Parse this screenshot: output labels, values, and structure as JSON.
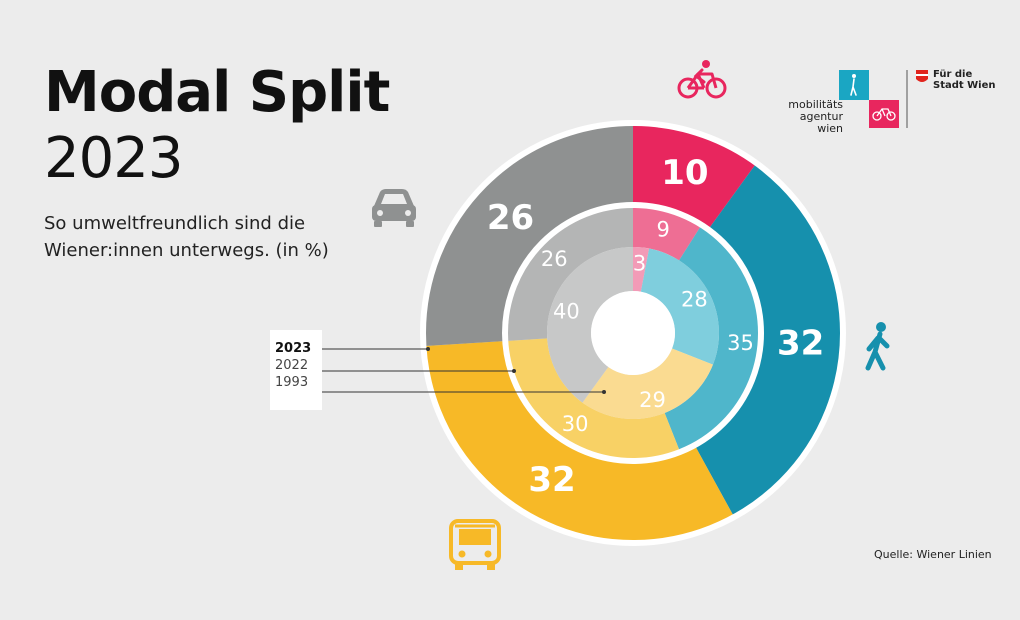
{
  "title": "Modal Split",
  "year": "2023",
  "subtitle": "So umweltfreundlich sind die Wiener:innen unterwegs. (in %)",
  "legend": [
    "2023",
    "2022",
    "1993"
  ],
  "source": "Quelle: Wiener Linien",
  "logo": {
    "agency_text": [
      "mobilitäts",
      "agentur",
      "wien"
    ],
    "city_text": [
      "Für die",
      "Stadt Wien"
    ]
  },
  "colors": {
    "background": "#ececec",
    "bike": [
      "#e8265e",
      "#ee6e94",
      "#f29bb7"
    ],
    "walk": [
      "#1690ad",
      "#4fb6cb",
      "#7fcedd"
    ],
    "transit": [
      "#f7b927",
      "#f8d165",
      "#fadb91"
    ],
    "car": [
      "#8f9191",
      "#b4b5b5",
      "#c7c8c8"
    ]
  },
  "icons": [
    "bicycle-icon",
    "pedestrian-icon",
    "bus-icon",
    "car-icon"
  ],
  "chart_data": {
    "type": "nested-donut",
    "categories": [
      "Rad",
      "Zu Fuß",
      "Öffis",
      "Auto"
    ],
    "series": [
      {
        "name": "2023",
        "values": [
          10,
          32,
          32,
          26
        ]
      },
      {
        "name": "2022",
        "values": [
          9,
          35,
          30,
          26
        ]
      },
      {
        "name": "1993",
        "values": [
          3,
          28,
          29,
          40
        ]
      }
    ]
  }
}
